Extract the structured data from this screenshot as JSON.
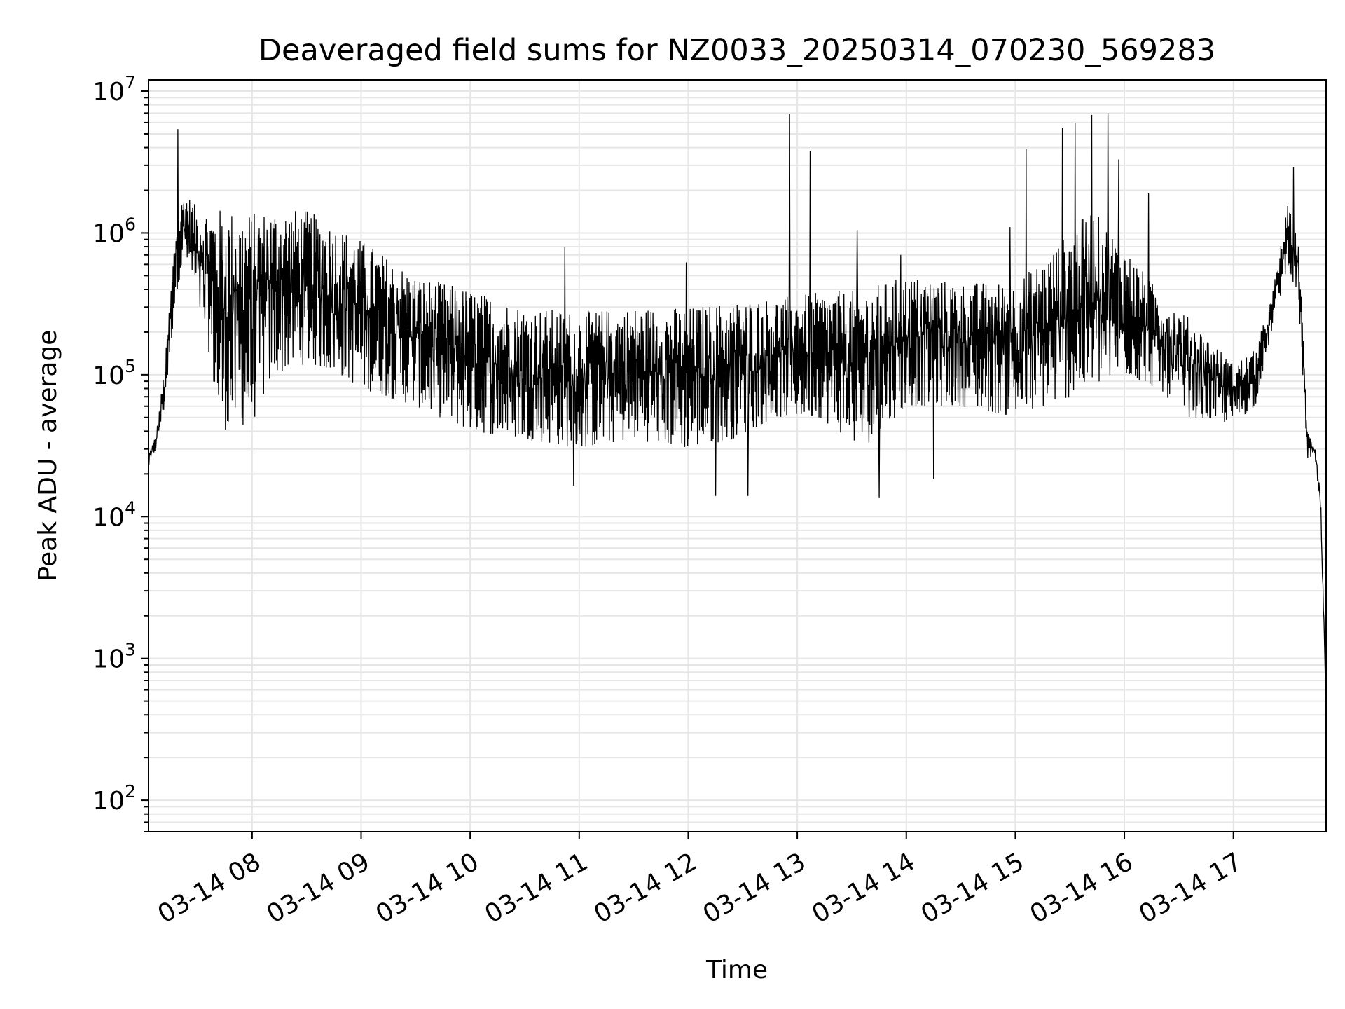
{
  "chart_data": {
    "type": "line",
    "title": "Deaveraged field sums for NZ0033_20250314_070230_569283",
    "xlabel": "Time",
    "ylabel": "Peak ADU - average",
    "yscale": "log",
    "xlim": [
      "03-14 07:03",
      "03-14 17:51"
    ],
    "ylim": [
      60,
      12000000
    ],
    "grid": true,
    "line_color": "#000000",
    "x_ticks": [
      {
        "label": "03-14 08",
        "hour": 8
      },
      {
        "label": "03-14 09",
        "hour": 9
      },
      {
        "label": "03-14 10",
        "hour": 10
      },
      {
        "label": "03-14 11",
        "hour": 11
      },
      {
        "label": "03-14 12",
        "hour": 12
      },
      {
        "label": "03-14 13",
        "hour": 13
      },
      {
        "label": "03-14 14",
        "hour": 14
      },
      {
        "label": "03-14 15",
        "hour": 15
      },
      {
        "label": "03-14 16",
        "hour": 16
      },
      {
        "label": "03-14 17",
        "hour": 17
      }
    ],
    "y_ticks": [
      {
        "base": "10",
        "exp": "2",
        "value": 100
      },
      {
        "base": "10",
        "exp": "3",
        "value": 1000
      },
      {
        "base": "10",
        "exp": "4",
        "value": 10000
      },
      {
        "base": "10",
        "exp": "5",
        "value": 100000
      },
      {
        "base": "10",
        "exp": "6",
        "value": 1000000
      },
      {
        "base": "10",
        "exp": "7",
        "value": 10000000
      }
    ],
    "series": [
      {
        "x_unit": "hour of 03-14",
        "envelope": [
          {
            "t": 7.05,
            "lo": 22000,
            "hi": 28000
          },
          {
            "t": 7.12,
            "lo": 30000,
            "hi": 38000
          },
          {
            "t": 7.2,
            "lo": 60000,
            "hi": 120000
          },
          {
            "t": 7.3,
            "lo": 350000,
            "hi": 1200000
          },
          {
            "t": 7.38,
            "lo": 700000,
            "hi": 2000000
          },
          {
            "t": 7.5,
            "lo": 300000,
            "hi": 1500000
          },
          {
            "t": 7.6,
            "lo": 150000,
            "hi": 1500000
          },
          {
            "t": 7.7,
            "lo": 40000,
            "hi": 1500000
          },
          {
            "t": 8.0,
            "lo": 45000,
            "hi": 1400000
          },
          {
            "t": 8.2,
            "lo": 100000,
            "hi": 1500000
          },
          {
            "t": 8.5,
            "lo": 120000,
            "hi": 1450000
          },
          {
            "t": 8.8,
            "lo": 100000,
            "hi": 1100000
          },
          {
            "t": 9.0,
            "lo": 80000,
            "hi": 900000
          },
          {
            "t": 9.5,
            "lo": 60000,
            "hi": 500000
          },
          {
            "t": 10.0,
            "lo": 40000,
            "hi": 400000
          },
          {
            "t": 10.5,
            "lo": 35000,
            "hi": 300000
          },
          {
            "t": 11.0,
            "lo": 30000,
            "hi": 280000
          },
          {
            "t": 11.5,
            "lo": 35000,
            "hi": 300000
          },
          {
            "t": 12.0,
            "lo": 30000,
            "hi": 300000
          },
          {
            "t": 12.4,
            "lo": 35000,
            "hi": 330000
          },
          {
            "t": 12.8,
            "lo": 50000,
            "hi": 350000
          },
          {
            "t": 13.2,
            "lo": 50000,
            "hi": 380000
          },
          {
            "t": 13.6,
            "lo": 30000,
            "hi": 400000
          },
          {
            "t": 14.0,
            "lo": 60000,
            "hi": 500000
          },
          {
            "t": 14.5,
            "lo": 60000,
            "hi": 450000
          },
          {
            "t": 15.0,
            "lo": 50000,
            "hi": 450000
          },
          {
            "t": 15.3,
            "lo": 60000,
            "hi": 700000
          },
          {
            "t": 15.7,
            "lo": 80000,
            "hi": 1500000
          },
          {
            "t": 16.0,
            "lo": 100000,
            "hi": 800000
          },
          {
            "t": 16.3,
            "lo": 80000,
            "hi": 400000
          },
          {
            "t": 16.6,
            "lo": 50000,
            "hi": 250000
          },
          {
            "t": 17.0,
            "lo": 45000,
            "hi": 120000
          },
          {
            "t": 17.2,
            "lo": 60000,
            "hi": 150000
          },
          {
            "t": 17.35,
            "lo": 200000,
            "hi": 350000
          },
          {
            "t": 17.5,
            "lo": 600000,
            "hi": 1600000
          },
          {
            "t": 17.6,
            "lo": 300000,
            "hi": 900000
          },
          {
            "t": 17.68,
            "lo": 25000,
            "hi": 40000
          },
          {
            "t": 17.75,
            "lo": 25000,
            "hi": 32000
          },
          {
            "t": 17.8,
            "lo": 10000,
            "hi": 15000
          },
          {
            "t": 17.83,
            "lo": 1200,
            "hi": 2000
          }
        ],
        "spikes": [
          {
            "t": 7.32,
            "v": 5400000
          },
          {
            "t": 12.93,
            "v": 6900000
          },
          {
            "t": 13.12,
            "v": 3800000
          },
          {
            "t": 13.55,
            "v": 1050000
          },
          {
            "t": 15.1,
            "v": 3900000
          },
          {
            "t": 15.43,
            "v": 5500000
          },
          {
            "t": 15.55,
            "v": 6000000
          },
          {
            "t": 15.7,
            "v": 6800000
          },
          {
            "t": 15.85,
            "v": 7000000
          },
          {
            "t": 15.95,
            "v": 3300000
          },
          {
            "t": 16.22,
            "v": 1900000
          },
          {
            "t": 17.55,
            "v": 2900000
          },
          {
            "t": 10.87,
            "v": 800000
          },
          {
            "t": 11.98,
            "v": 620000
          },
          {
            "t": 14.95,
            "v": 1100000
          },
          {
            "t": 13.95,
            "v": 700000
          },
          {
            "t": 13.75,
            "v": 13500
          },
          {
            "t": 12.25,
            "v": 14000
          },
          {
            "t": 12.55,
            "v": 14000
          },
          {
            "t": 10.95,
            "v": 16500
          },
          {
            "t": 14.25,
            "v": 18500
          }
        ]
      }
    ]
  }
}
